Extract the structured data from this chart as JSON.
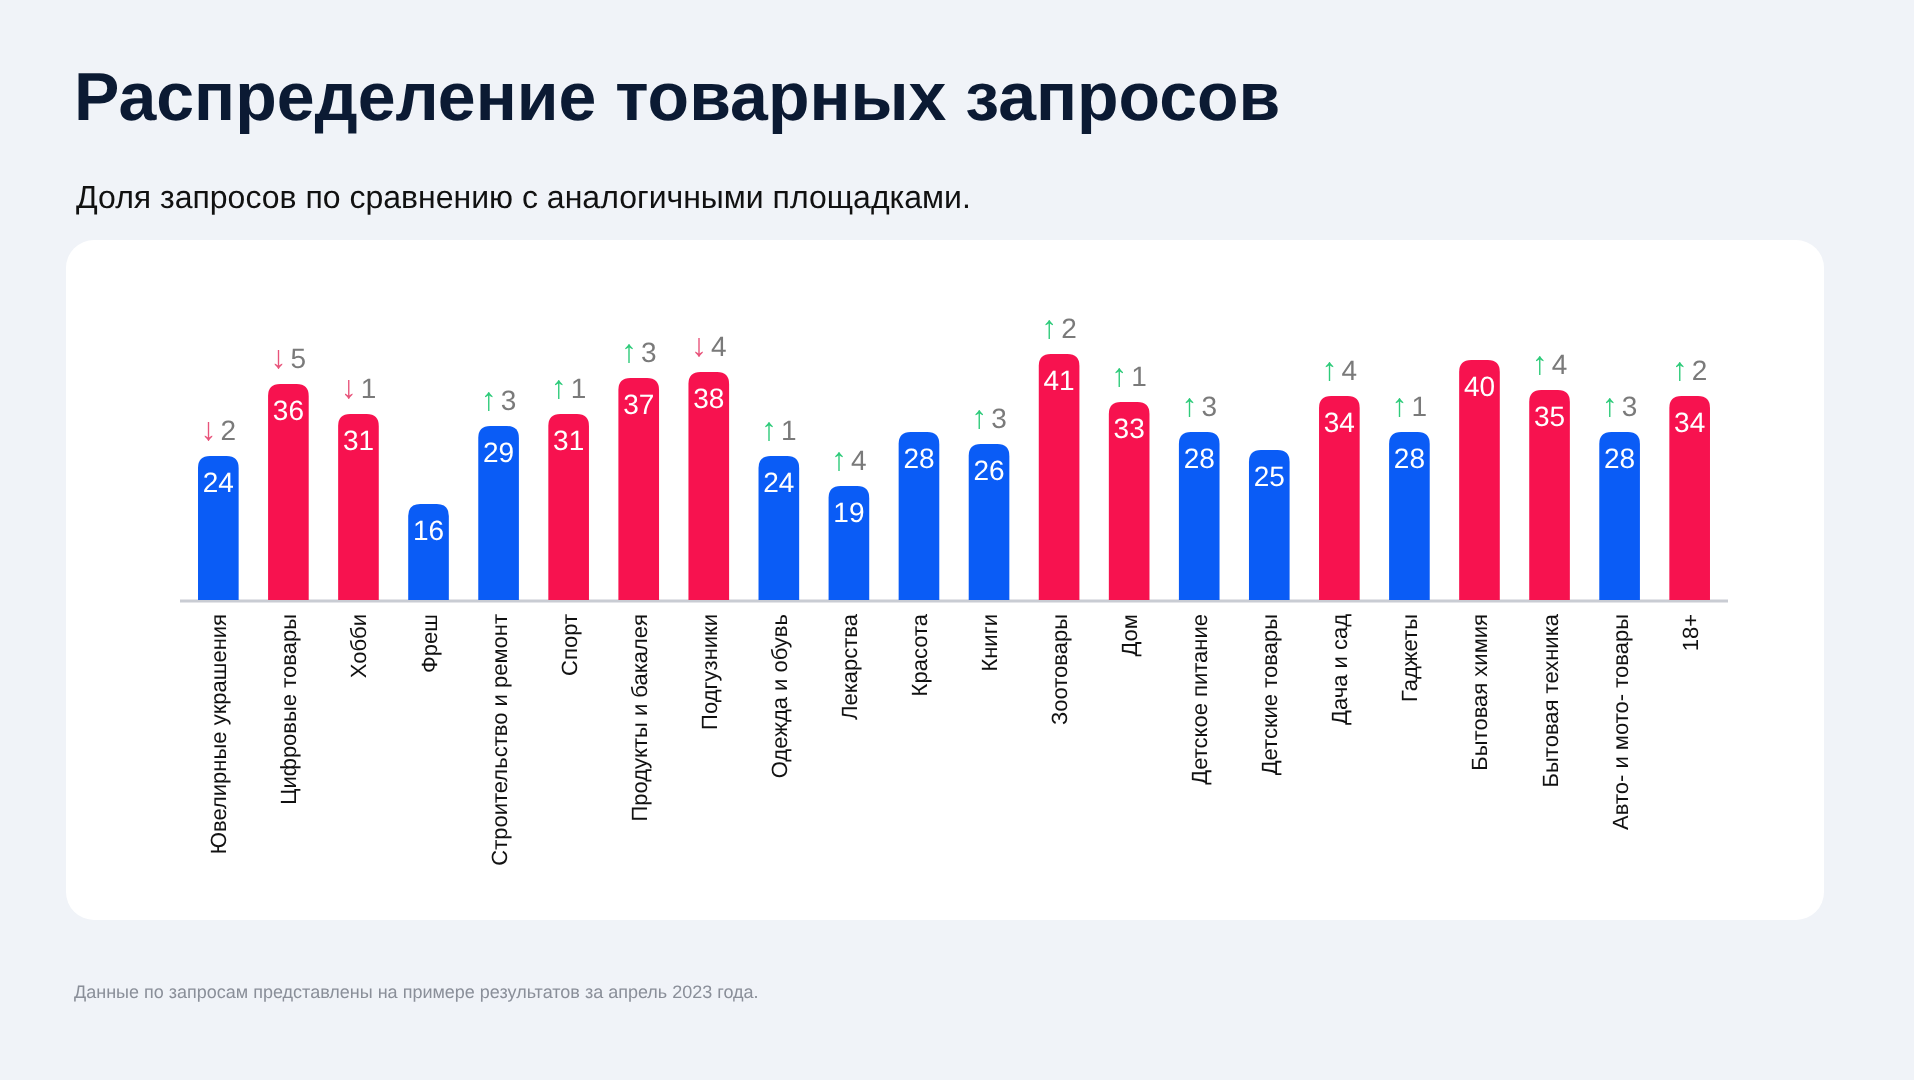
{
  "chart_data": {
    "type": "bar",
    "title": "Распределение товарных запросов",
    "subtitle": "Доля запросов по сравнению с аналогичными площадками.",
    "categories": [
      "Ювелирные украшения",
      "Цифровые товары",
      "Хобби",
      "Фреш",
      "Строительство и ремонт",
      "Спорт",
      "Продукты и бакалея",
      "Подгузники",
      "Одежда и обувь",
      "Лекарства",
      "Красота",
      "Книги",
      "Зоотовары",
      "Дом",
      "Детское питание",
      "Детские товары",
      "Дача и сад",
      "Гаджеты",
      "Бытовая химия",
      "Бытовая техника",
      "Авто- и мото- товары",
      "18+"
    ],
    "values": [
      24,
      36,
      31,
      16,
      29,
      31,
      37,
      38,
      24,
      19,
      28,
      26,
      41,
      33,
      28,
      25,
      34,
      28,
      40,
      35,
      28,
      34
    ],
    "colors": [
      "#0a5cf6",
      "#f7124f",
      "#f7124f",
      "#0a5cf6",
      "#0a5cf6",
      "#f7124f",
      "#f7124f",
      "#f7124f",
      "#0a5cf6",
      "#0a5cf6",
      "#0a5cf6",
      "#0a5cf6",
      "#f7124f",
      "#f7124f",
      "#0a5cf6",
      "#0a5cf6",
      "#f7124f",
      "#0a5cf6",
      "#f7124f",
      "#f7124f",
      "#0a5cf6",
      "#f7124f"
    ],
    "data_labels": true,
    "annotations": [
      {
        "text": "↓2",
        "x": "Ювелирные украшения",
        "y": 24
      },
      {
        "text": "↓5",
        "x": "Цифровые товары",
        "y": 36
      },
      {
        "text": "↓1",
        "x": "Хобби",
        "y": 31
      },
      {
        "text": "↑3",
        "x": "Строительство и ремонт",
        "y": 29
      },
      {
        "text": "↑1",
        "x": "Спорт",
        "y": 31
      },
      {
        "text": "↑3",
        "x": "Продукты и бакалея",
        "y": 37
      },
      {
        "text": "↓4",
        "x": "Подгузники",
        "y": 38
      },
      {
        "text": "↑1",
        "x": "Одежда и обувь",
        "y": 24
      },
      {
        "text": "↑4",
        "x": "Лекарства",
        "y": 19
      },
      {
        "text": "↑3",
        "x": "Книги",
        "y": 26
      },
      {
        "text": "↑2",
        "x": "Зоотовары",
        "y": 41
      },
      {
        "text": "↑1",
        "x": "Дом",
        "y": 33
      },
      {
        "text": "↑3",
        "x": "Детское питание",
        "y": 28
      },
      {
        "text": "↑4",
        "x": "Дача и сад",
        "y": 34
      },
      {
        "text": "↑1",
        "x": "Гаджеты",
        "y": 28
      },
      {
        "text": "↑4",
        "x": "Бытовая техника",
        "y": 35
      },
      {
        "text": "↑3",
        "x": "Авто- и мото- товары",
        "y": 28
      },
      {
        "text": "↑2",
        "x": "18+",
        "y": 34
      },
      "Данные по запросам представлены на примере результатов за апрель 2023 года."
    ]
  }
}
